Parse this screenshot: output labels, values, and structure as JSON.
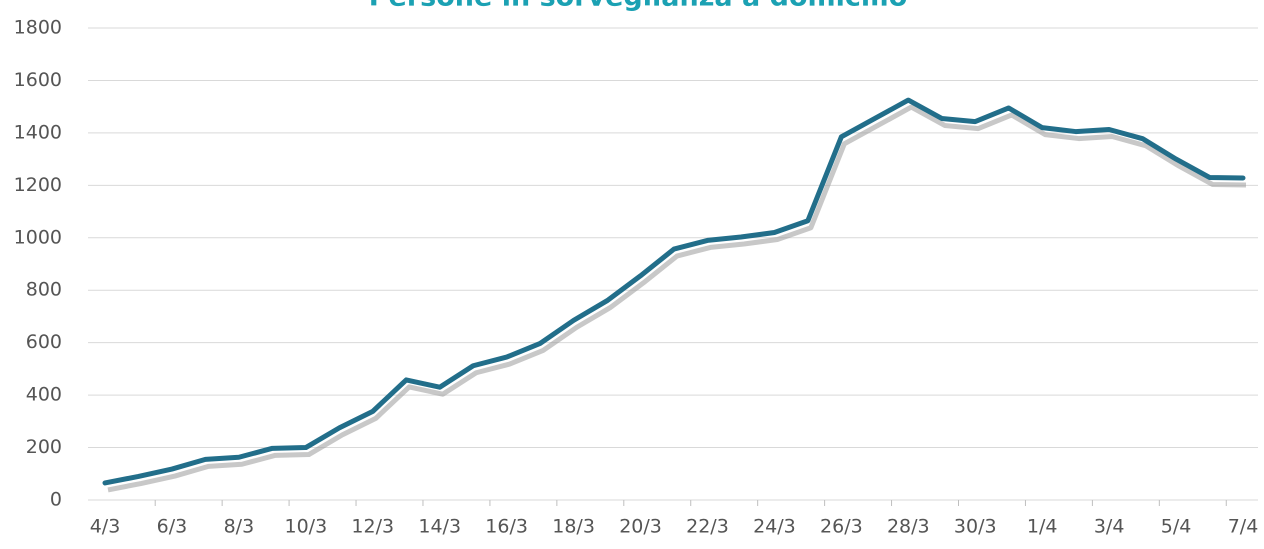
{
  "chart_data": {
    "type": "line",
    "title": "Persone in sorveglianza a domicilio",
    "categories": [
      "4/3",
      null,
      "6/3",
      null,
      "8/3",
      null,
      "10/3",
      null,
      "12/3",
      null,
      "14/3",
      null,
      "16/3",
      null,
      "18/3",
      null,
      "20/3",
      null,
      "22/3",
      null,
      "24/3",
      null,
      "26/3",
      null,
      "28/3",
      null,
      "30/3",
      null,
      "1/4",
      null,
      "3/4",
      null,
      "5/4",
      null,
      "7/4"
    ],
    "series": [
      {
        "name": "Persone in sorveglianza a domicilio",
        "color": "#226e8a",
        "values": [
          65,
          90,
          118,
          155,
          163,
          197,
          200,
          275,
          338,
          458,
          430,
          512,
          545,
          597,
          685,
          760,
          855,
          957,
          990,
          1003,
          1020,
          1065,
          1385,
          1455,
          1525,
          1455,
          1443,
          1495,
          1420,
          1405,
          1413,
          1378,
          1300,
          1230,
          1228
        ]
      }
    ],
    "ylim": [
      0,
      1800
    ],
    "yticks": [
      0,
      200,
      400,
      600,
      800,
      1000,
      1200,
      1400,
      1600,
      1800
    ],
    "grid": true
  }
}
